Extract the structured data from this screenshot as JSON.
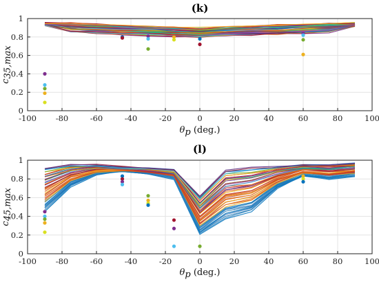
{
  "chart_data": [
    {
      "type": "line",
      "title": "(k)",
      "xlabel": {
        "symbol": "θ",
        "sub": "p",
        "unit": " (deg.)"
      },
      "ylabel": {
        "symbol": "c",
        "sub": "35,max"
      },
      "xlim": [
        -100,
        100
      ],
      "ylim": [
        0,
        1
      ],
      "xticks": [
        -100,
        -80,
        -60,
        -40,
        -20,
        0,
        20,
        40,
        60,
        80,
        100
      ],
      "yticks": [
        0,
        0.2,
        0.4,
        0.6,
        0.8,
        1
      ],
      "xticklabels": [
        "-100",
        "-80",
        "-60",
        "-40",
        "-20",
        "0",
        "20",
        "40",
        "60",
        "80",
        "100"
      ],
      "yticklabels": [
        "0",
        "0.2",
        "0.4",
        "0.6",
        "0.8",
        "1"
      ],
      "grid": true,
      "x": [
        -90,
        -75,
        -60,
        -45,
        -30,
        -15,
        0,
        15,
        30,
        45,
        60,
        75,
        90
      ],
      "line_series_summary": {
        "count": 40,
        "upper_envelope": [
          0.95,
          0.95,
          0.94,
          0.93,
          0.92,
          0.91,
          0.9,
          0.91,
          0.92,
          0.93,
          0.94,
          0.95,
          0.95
        ],
        "lower_envelope": [
          0.93,
          0.85,
          0.84,
          0.83,
          0.82,
          0.81,
          0.8,
          0.81,
          0.82,
          0.83,
          0.84,
          0.85,
          0.92
        ]
      },
      "scatter_points": [
        {
          "x": -90,
          "y": 0.4
        },
        {
          "x": -90,
          "y": 0.28
        },
        {
          "x": -90,
          "y": 0.24
        },
        {
          "x": -90,
          "y": 0.19
        },
        {
          "x": -90,
          "y": 0.09
        },
        {
          "x": -45,
          "y": 0.8
        },
        {
          "x": -45,
          "y": 0.79
        },
        {
          "x": -30,
          "y": 0.81
        },
        {
          "x": -30,
          "y": 0.78
        },
        {
          "x": -30,
          "y": 0.67
        },
        {
          "x": -15,
          "y": 0.8
        },
        {
          "x": -15,
          "y": 0.77
        },
        {
          "x": 0,
          "y": 0.78
        },
        {
          "x": 0,
          "y": 0.72
        },
        {
          "x": 60,
          "y": 0.84
        },
        {
          "x": 60,
          "y": 0.82
        },
        {
          "x": 60,
          "y": 0.77
        },
        {
          "x": 60,
          "y": 0.61
        }
      ]
    },
    {
      "type": "line",
      "title": "(l)",
      "xlabel": {
        "symbol": "θ",
        "sub": "p",
        "unit": " (deg.)"
      },
      "ylabel": {
        "symbol": "c",
        "sub": "45,max"
      },
      "xlim": [
        -100,
        100
      ],
      "ylim": [
        0,
        1
      ],
      "xticks": [
        -100,
        -80,
        -60,
        -40,
        -20,
        0,
        20,
        40,
        60,
        80,
        100
      ],
      "yticks": [
        0,
        0.2,
        0.4,
        0.6,
        0.8,
        1
      ],
      "xticklabels": [
        "-100",
        "-80",
        "-60",
        "-40",
        "-20",
        "0",
        "20",
        "40",
        "60",
        "80",
        "100"
      ],
      "yticklabels": [
        "0",
        "0.2",
        "0.4",
        "0.6",
        "0.8",
        "1"
      ],
      "grid": true,
      "x": [
        -90,
        -75,
        -60,
        -45,
        -30,
        -15,
        0,
        15,
        30,
        45,
        60,
        75,
        90
      ],
      "line_series_summary": {
        "count": 45,
        "typical_shape": "V-shaped dip at θp = 0",
        "upper_envelope": [
          0.92,
          0.95,
          0.95,
          0.93,
          0.92,
          0.9,
          0.62,
          0.9,
          0.92,
          0.93,
          0.95,
          0.95,
          0.97
        ],
        "lower_envelope": [
          0.45,
          0.72,
          0.85,
          0.88,
          0.85,
          0.8,
          0.2,
          0.38,
          0.45,
          0.7,
          0.83,
          0.8,
          0.83
        ]
      },
      "scatter_points": [
        {
          "x": -90,
          "y": 0.45
        },
        {
          "x": -90,
          "y": 0.4
        },
        {
          "x": -90,
          "y": 0.37
        },
        {
          "x": -90,
          "y": 0.33
        },
        {
          "x": -90,
          "y": 0.23
        },
        {
          "x": -45,
          "y": 0.83
        },
        {
          "x": -45,
          "y": 0.8
        },
        {
          "x": -45,
          "y": 0.77
        },
        {
          "x": -45,
          "y": 0.74
        },
        {
          "x": -30,
          "y": 0.62
        },
        {
          "x": -30,
          "y": 0.57
        },
        {
          "x": -30,
          "y": 0.54
        },
        {
          "x": -30,
          "y": 0.52
        },
        {
          "x": -15,
          "y": 0.36
        },
        {
          "x": -15,
          "y": 0.27
        },
        {
          "x": -15,
          "y": 0.08
        },
        {
          "x": 0,
          "y": 0.08
        },
        {
          "x": 60,
          "y": 0.83
        },
        {
          "x": 60,
          "y": 0.8
        },
        {
          "x": 60,
          "y": 0.77
        }
      ]
    }
  ]
}
